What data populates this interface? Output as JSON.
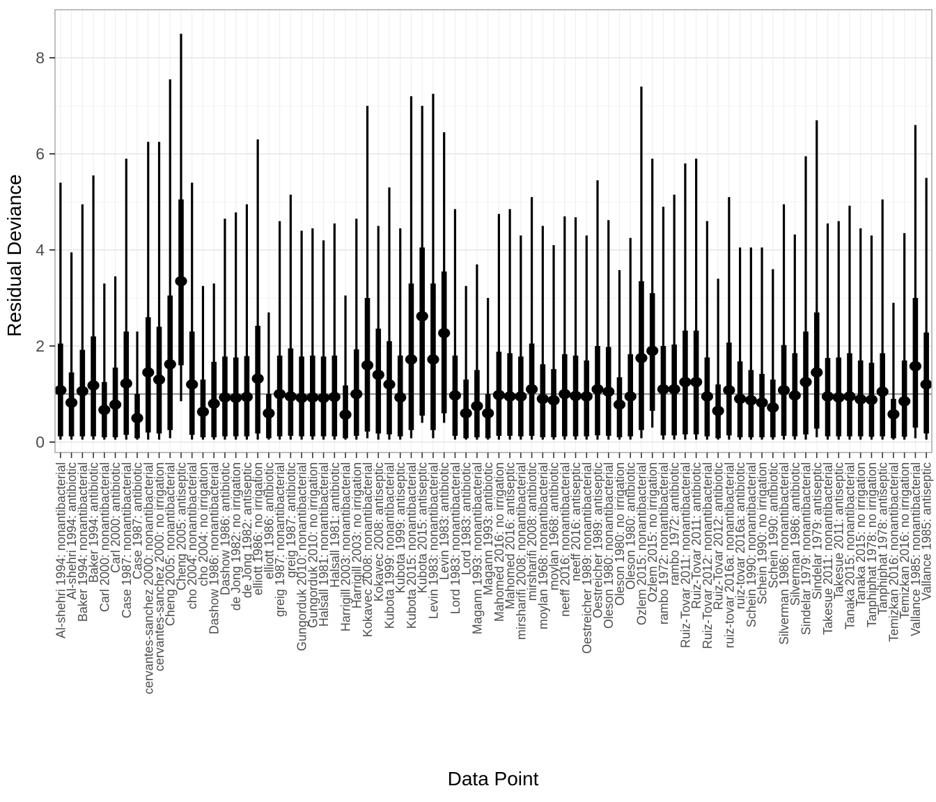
{
  "chart_data": {
    "type": "pointrange-forest",
    "title": "",
    "xlabel": "Data Point",
    "ylabel": "Residual Deviance",
    "ylim": [
      0,
      9
    ],
    "yticks": [
      0,
      2,
      4,
      6,
      8
    ],
    "grid": "on",
    "legend": "none",
    "reference_line_y": 1,
    "colors": {
      "mark": "#000000",
      "axis_text": "#4d4d4d",
      "axis_title": "#000000",
      "panel_border": "#adadad",
      "grid_major": "#e6e6e6",
      "grid_minor": "#f3f3f3",
      "grid_vertical": "#efefef",
      "reference_line": "#808080",
      "tick": "#333333",
      "background": "#ffffff"
    },
    "point_fields": [
      "label",
      "outer_low",
      "inner_low",
      "point",
      "inner_high",
      "outer_high"
    ],
    "points": [
      [
        "Al-shehri 1994: nonantibacterial",
        0.05,
        0.12,
        1.08,
        2.05,
        5.4
      ],
      [
        "Al-shehri 1994: antibiotic",
        0.05,
        0.12,
        0.82,
        1.45,
        3.95
      ],
      [
        "Baker 1994: nonantibacterial",
        0.05,
        0.12,
        1.06,
        1.92,
        4.95
      ],
      [
        "Baker 1994: antibiotic",
        0.05,
        0.12,
        1.18,
        2.2,
        5.55
      ],
      [
        "Carl 2000: nonantibacterial",
        0.05,
        0.1,
        0.67,
        1.25,
        3.3
      ],
      [
        "Carl 2000: antibiotic",
        0.05,
        0.1,
        0.78,
        1.55,
        3.45
      ],
      [
        "Case 1987: nonantibacterial",
        0.05,
        0.15,
        1.22,
        2.3,
        5.9
      ],
      [
        "Case 1987: antibiotic",
        0.05,
        0.08,
        0.5,
        1.0,
        2.3
      ],
      [
        "cervantes-sanchez 2000: nonantibacterial",
        0.05,
        0.2,
        1.45,
        2.6,
        6.25
      ],
      [
        "cervantes-sanchez 2000: no irrigation",
        0.05,
        0.18,
        1.3,
        2.4,
        6.25
      ],
      [
        "Cheng 2005: nonantibacterial",
        0.08,
        0.25,
        1.62,
        3.05,
        7.55
      ],
      [
        "Cheng 2005: antiseptic",
        0.85,
        1.6,
        3.35,
        5.05,
        8.5
      ],
      [
        "cho 2004: nonantibacterial",
        0.05,
        0.15,
        1.2,
        2.3,
        5.4
      ],
      [
        "cho 2004: no irrigation",
        0.05,
        0.1,
        0.63,
        1.3,
        3.25
      ],
      [
        "Dashow 1986: nonantibacterial",
        0.05,
        0.1,
        0.8,
        1.67,
        3.3
      ],
      [
        "Dashow 1986: antibiotic",
        0.05,
        0.12,
        0.93,
        1.78,
        4.65
      ],
      [
        "de Jong 1982: no irrigation",
        0.05,
        0.12,
        0.92,
        1.76,
        4.78
      ],
      [
        "de Jong 1982: antiseptic",
        0.05,
        0.12,
        0.94,
        1.79,
        4.95
      ],
      [
        "elliott 1986: no irrigation",
        0.05,
        0.18,
        1.32,
        2.42,
        6.3
      ],
      [
        "elliott 1986: antibiotic",
        0.05,
        0.08,
        0.6,
        1.0,
        2.7
      ],
      [
        "greig 1987: nonantibacterial",
        0.05,
        0.12,
        1.0,
        1.8,
        4.6
      ],
      [
        "greig 1987: antibiotic",
        0.05,
        0.13,
        0.95,
        1.95,
        5.15
      ],
      [
        "Gungorduk 2010: nonantibacterial",
        0.05,
        0.12,
        0.92,
        1.78,
        4.4
      ],
      [
        "Gungorduk 2010: no irrigation",
        0.05,
        0.12,
        0.93,
        1.8,
        4.45
      ],
      [
        "Halsall 1981: nonantibacterial",
        0.05,
        0.12,
        0.92,
        1.78,
        4.2
      ],
      [
        "Halsall 1981: antibiotic",
        0.05,
        0.12,
        0.94,
        1.8,
        4.55
      ],
      [
        "Harrigill 2003: nonantibacterial",
        0.05,
        0.08,
        0.57,
        1.18,
        3.05
      ],
      [
        "Harrigill 2003: no irrigation",
        0.05,
        0.13,
        1.0,
        1.93,
        4.65
      ],
      [
        "Kokavec 2008: nonantibacterial",
        0.08,
        0.22,
        1.6,
        3.0,
        7.0
      ],
      [
        "Kokavec 2008: antiseptic",
        0.05,
        0.18,
        1.4,
        2.36,
        4.5
      ],
      [
        "Kubota 1999: nonantibacterial",
        0.05,
        0.16,
        1.2,
        2.1,
        5.3
      ],
      [
        "Kubota 1999: antiseptic",
        0.05,
        0.12,
        0.93,
        1.8,
        4.45
      ],
      [
        "Kubota 2015: nonantibacterial",
        0.08,
        0.25,
        1.72,
        3.3,
        7.2
      ],
      [
        "Kubota 2015: antiseptic",
        0.4,
        0.55,
        2.62,
        4.05,
        7.0
      ],
      [
        "Levin 1983: nonantibacterial",
        0.08,
        0.25,
        1.72,
        3.3,
        7.25
      ],
      [
        "Levin 1983: antibiotic",
        0.4,
        0.6,
        2.27,
        3.55,
        6.45
      ],
      [
        "Lord 1983: nonantibacterial",
        0.05,
        0.13,
        0.97,
        1.8,
        4.85
      ],
      [
        "Lord 1983: antibiotic",
        0.05,
        0.08,
        0.6,
        1.3,
        3.25
      ],
      [
        "Magann 1993: nonantibacterial",
        0.05,
        0.1,
        0.75,
        1.5,
        3.7
      ],
      [
        "Magann 1993: antibiotic",
        0.05,
        0.08,
        0.6,
        1.0,
        3.0
      ],
      [
        "Mahomed 2016: no irrigation",
        0.05,
        0.13,
        0.98,
        1.88,
        4.75
      ],
      [
        "Mahomed 2016: antiseptic",
        0.05,
        0.13,
        0.95,
        1.85,
        4.85
      ],
      [
        "mirsharifi 2008: nonantibacterial",
        0.05,
        0.12,
        0.95,
        1.78,
        4.3
      ],
      [
        "mirsharifi 2008: antibiotic",
        0.05,
        0.13,
        1.1,
        2.05,
        5.1
      ],
      [
        "moylan 1968: nonantibacterial",
        0.05,
        0.1,
        0.9,
        1.62,
        4.5
      ],
      [
        "moylan 1968: antibiotic",
        0.05,
        0.1,
        0.87,
        1.52,
        4.1
      ],
      [
        "neeff 2016: nonantibacterial",
        0.05,
        0.12,
        1.0,
        1.83,
        4.7
      ],
      [
        "neeff 2016: antiseptic",
        0.05,
        0.12,
        0.96,
        1.8,
        4.68
      ],
      [
        "Oestreicher 1989: nonantibacterial",
        0.05,
        0.12,
        0.95,
        1.7,
        4.3
      ],
      [
        "Oestreicher 1989: antiseptic",
        0.05,
        0.14,
        1.1,
        2.0,
        5.45
      ],
      [
        "Oleson 1980: nonantibacterial",
        0.05,
        0.13,
        1.05,
        1.98,
        4.62
      ],
      [
        "Oleson 1980: no irrigation",
        0.05,
        0.1,
        0.78,
        1.35,
        3.58
      ],
      [
        "Oleson 1980: antibiotic",
        0.05,
        0.12,
        0.95,
        1.83,
        4.25
      ],
      [
        "Ozlem 2015: nonantibacterial",
        0.08,
        0.25,
        1.75,
        3.35,
        7.4
      ],
      [
        "Ozlem 2015: no irrigation",
        0.3,
        0.65,
        1.9,
        3.1,
        5.9
      ],
      [
        "rambo 1972: nonantibacterial",
        0.05,
        0.14,
        1.1,
        2.0,
        4.9
      ],
      [
        "rambo 1972: antibiotic",
        0.05,
        0.14,
        1.1,
        2.03,
        5.15
      ],
      [
        "Ruiz-Tovar 2011: nonantibacterial",
        0.05,
        0.16,
        1.25,
        2.32,
        5.8
      ],
      [
        "Ruiz-Tovar 2011: antibiotic",
        0.05,
        0.16,
        1.25,
        2.32,
        5.9
      ],
      [
        "Ruiz-Tovar 2012: nonantibacterial",
        0.05,
        0.12,
        0.95,
        1.76,
        4.6
      ],
      [
        "Ruiz-Tovar 2012: antibiotic",
        0.05,
        0.08,
        0.65,
        1.2,
        3.4
      ],
      [
        "ruiz-tovar 2016a: nonantibacterial",
        0.05,
        0.14,
        1.08,
        2.07,
        5.1
      ],
      [
        "ruiz-tovar 2016a: antibiotic",
        0.05,
        0.1,
        0.9,
        1.68,
        4.05
      ],
      [
        "Schein 1990: nonantibacterial",
        0.05,
        0.1,
        0.87,
        1.5,
        4.05
      ],
      [
        "Schein 1990: no irrigation",
        0.05,
        0.1,
        0.82,
        1.42,
        4.05
      ],
      [
        "Schein 1990: antibiotic",
        0.05,
        0.1,
        0.72,
        1.3,
        3.6
      ],
      [
        "Silverman 1986: nonantibacterial",
        0.05,
        0.13,
        1.08,
        2.02,
        4.95
      ],
      [
        "Silverman 1986: antibiotic",
        0.05,
        0.12,
        0.97,
        1.85,
        4.32
      ],
      [
        "Sindelar 1979: nonantibacterial",
        0.05,
        0.16,
        1.25,
        2.3,
        5.95
      ],
      [
        "Sindelar 1979: antiseptic",
        0.1,
        0.28,
        1.45,
        2.7,
        6.7
      ],
      [
        "Takesue 2011: nonantibacterial",
        0.05,
        0.12,
        0.95,
        1.75,
        4.55
      ],
      [
        "Takesue 2011: antiseptic",
        0.05,
        0.12,
        0.93,
        1.76,
        4.6
      ],
      [
        "Tanaka 2015: nonantibacterial",
        0.05,
        0.12,
        0.95,
        1.85,
        4.92
      ],
      [
        "Tanaka 2015: no irrigation",
        0.05,
        0.12,
        0.89,
        1.7,
        4.45
      ],
      [
        "Tanphiphat 1978: no irrigation",
        0.05,
        0.11,
        0.88,
        1.65,
        4.3
      ],
      [
        "Tanphiphat 1978: antiseptic",
        0.05,
        0.12,
        1.05,
        1.85,
        5.05
      ],
      [
        "Temizkan 2016: nonantibacterial",
        0.05,
        0.08,
        0.58,
        0.9,
        2.9
      ],
      [
        "Temizkan 2016: no irrigation",
        0.05,
        0.11,
        0.85,
        1.7,
        4.35
      ],
      [
        "Vallance 1985: nonantibacterial",
        0.08,
        0.3,
        1.58,
        3.0,
        6.6
      ],
      [
        "Vallance 1985: antiseptic",
        0.05,
        0.18,
        1.2,
        2.28,
        5.5
      ]
    ]
  }
}
